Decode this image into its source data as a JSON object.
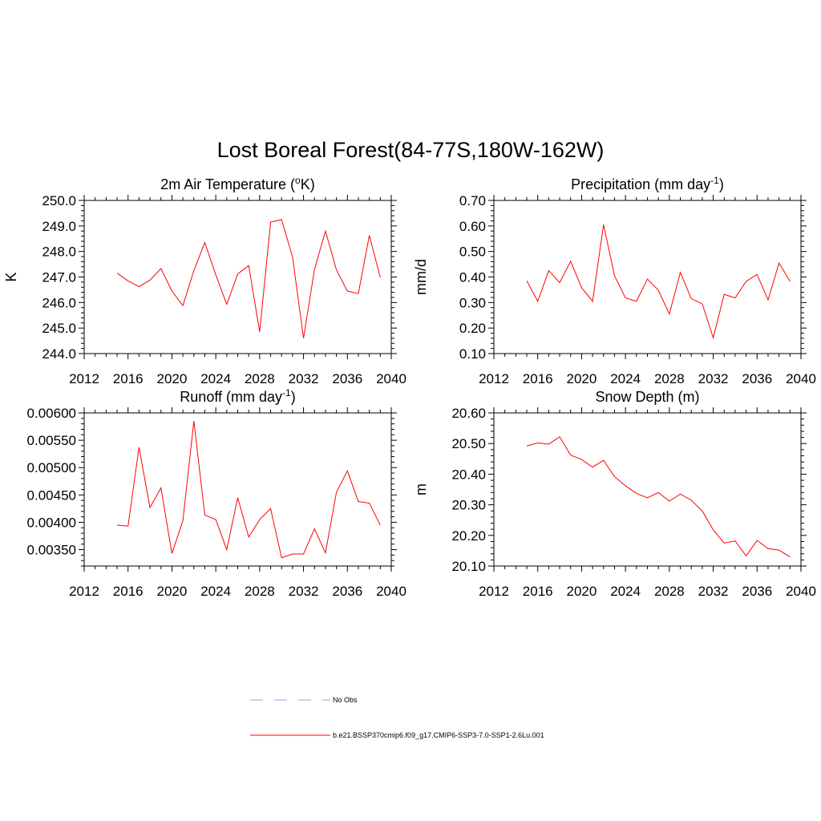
{
  "title": "Lost Boreal Forest(84-77S,180W-162W)",
  "legend": {
    "entries": [
      {
        "label": "No Obs",
        "color": "#9a9ae6",
        "dash": true
      },
      {
        "label": "b.e21.BSSP370cmip6.f09_g17.CMIP6-SSP3-7.0-SSP1-2.6Lu.001",
        "color": "#ff0000",
        "dash": false
      }
    ]
  },
  "chart_data": [
    {
      "type": "line",
      "title": "2m Air Temperature (",
      "title_sup": "o",
      "title_after": "K)",
      "title_tail": "",
      "ylabel": "K",
      "xlim": [
        2012,
        2040
      ],
      "ylim": [
        244.0,
        250.0
      ],
      "xticks": [
        2012,
        2016,
        2020,
        2024,
        2028,
        2032,
        2036,
        2040
      ],
      "yticks": [
        "244.0",
        "245.0",
        "246.0",
        "247.0",
        "248.0",
        "249.0",
        "250.0"
      ],
      "series": [
        {
          "color": "#ff0000",
          "x": [
            2015,
            2016,
            2017,
            2018,
            2019,
            2020,
            2021,
            2022,
            2023,
            2024,
            2025,
            2026,
            2027,
            2028,
            2029,
            2030,
            2031,
            2032,
            2033,
            2034,
            2035,
            2036,
            2037,
            2038,
            2039
          ],
          "y": [
            247.15,
            246.85,
            246.62,
            246.88,
            247.33,
            246.45,
            245.88,
            247.25,
            248.35,
            247.08,
            245.93,
            247.12,
            247.45,
            244.85,
            249.15,
            249.25,
            247.78,
            244.6,
            247.3,
            248.8,
            247.28,
            246.45,
            246.35,
            248.63,
            246.98
          ]
        }
      ]
    },
    {
      "type": "line",
      "title": "Precipitation (mm day",
      "title_sup": "-1",
      "title_after": ")",
      "title_tail": "",
      "ylabel": "mm/d",
      "xlim": [
        2012,
        2040
      ],
      "ylim": [
        0.1,
        0.7
      ],
      "xticks": [
        2012,
        2016,
        2020,
        2024,
        2028,
        2032,
        2036,
        2040
      ],
      "yticks": [
        "0.10",
        "0.20",
        "0.30",
        "0.40",
        "0.50",
        "0.60",
        "0.70"
      ],
      "series": [
        {
          "color": "#ff0000",
          "x": [
            2015,
            2016,
            2017,
            2018,
            2019,
            2020,
            2021,
            2022,
            2023,
            2024,
            2025,
            2026,
            2027,
            2028,
            2029,
            2030,
            2031,
            2032,
            2033,
            2034,
            2035,
            2036,
            2037,
            2038,
            2039
          ],
          "y": [
            0.385,
            0.305,
            0.425,
            0.378,
            0.462,
            0.358,
            0.305,
            0.605,
            0.405,
            0.318,
            0.305,
            0.392,
            0.348,
            0.255,
            0.418,
            0.315,
            0.295,
            0.162,
            0.332,
            0.318,
            0.383,
            0.41,
            0.31,
            0.455,
            0.383
          ]
        }
      ]
    },
    {
      "type": "line",
      "title": "Runoff (mm day",
      "title_sup": "-1",
      "title_after": ")",
      "title_tail": "",
      "ylabel": "",
      "xlim": [
        2012,
        2040
      ],
      "ylim": [
        0.0032,
        0.006
      ],
      "xticks": [
        2012,
        2016,
        2020,
        2024,
        2028,
        2032,
        2036,
        2040
      ],
      "yticks": [
        "0.00350",
        "0.00400",
        "0.00450",
        "0.00500",
        "0.00550",
        "0.00600"
      ],
      "series": [
        {
          "color": "#ff0000",
          "x": [
            2015,
            2016,
            2017,
            2018,
            2019,
            2020,
            2021,
            2022,
            2023,
            2024,
            2025,
            2026,
            2027,
            2028,
            2029,
            2030,
            2031,
            2032,
            2033,
            2034,
            2035,
            2036,
            2037,
            2038,
            2039
          ],
          "y": [
            0.00395,
            0.00393,
            0.00537,
            0.00427,
            0.00463,
            0.00343,
            0.00403,
            0.00585,
            0.00413,
            0.00405,
            0.0035,
            0.00445,
            0.00373,
            0.00405,
            0.00425,
            0.00335,
            0.00342,
            0.00342,
            0.00388,
            0.00344,
            0.00455,
            0.00494,
            0.00438,
            0.00435,
            0.00395
          ]
        }
      ]
    },
    {
      "type": "line",
      "title": "Snow Depth (m)",
      "title_sup": "",
      "title_after": "",
      "title_tail": "",
      "ylabel": "m",
      "xlim": [
        2012,
        2040
      ],
      "ylim": [
        20.1,
        20.6
      ],
      "xticks": [
        2012,
        2016,
        2020,
        2024,
        2028,
        2032,
        2036,
        2040
      ],
      "yticks": [
        "20.10",
        "20.20",
        "20.30",
        "20.40",
        "20.50",
        "20.60"
      ],
      "series": [
        {
          "color": "#ff0000",
          "x": [
            2015,
            2016,
            2017,
            2018,
            2019,
            2020,
            2021,
            2022,
            2023,
            2024,
            2025,
            2026,
            2027,
            2028,
            2029,
            2030,
            2031,
            2032,
            2033,
            2034,
            2035,
            2036,
            2037,
            2038,
            2039
          ],
          "y": [
            20.492,
            20.502,
            20.498,
            20.522,
            20.462,
            20.448,
            20.423,
            20.445,
            20.392,
            20.362,
            20.337,
            20.323,
            20.34,
            20.312,
            20.335,
            20.315,
            20.28,
            20.218,
            20.175,
            20.182,
            20.133,
            20.184,
            20.157,
            20.152,
            20.13
          ]
        }
      ]
    }
  ]
}
